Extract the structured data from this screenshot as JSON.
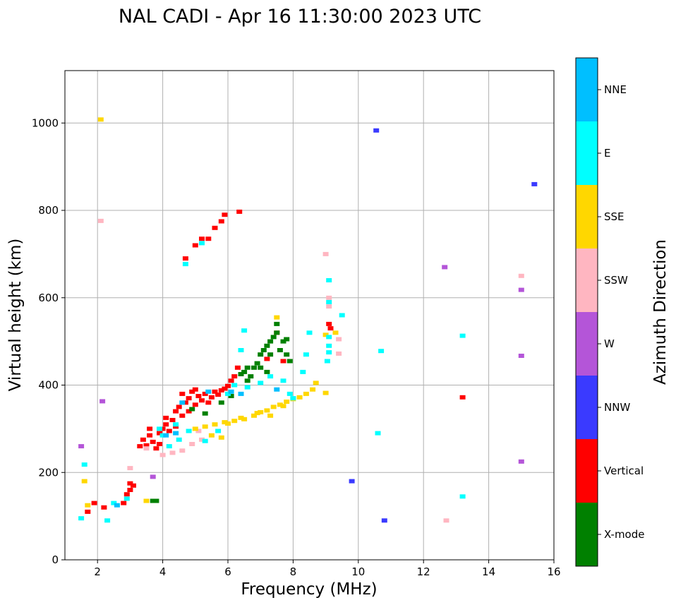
{
  "chart_data": {
    "type": "scatter",
    "title": "NAL CADI - Apr 16 11:30:00 2023 UTC",
    "xlabel": "Frequency (MHz)",
    "ylabel": "Virtual height (km)",
    "xlim": [
      1,
      16
    ],
    "ylim": [
      0,
      1120
    ],
    "xticks": [
      2,
      4,
      6,
      8,
      10,
      12,
      14,
      16
    ],
    "yticks": [
      0,
      200,
      400,
      600,
      800,
      1000
    ],
    "grid": true,
    "colorbar": {
      "label": "Azimuth Direction",
      "categories": [
        "X-mode",
        "Vertical",
        "NNW",
        "W",
        "SSW",
        "SSE",
        "E",
        "NNE"
      ],
      "colors": [
        "#008000",
        "#ff0000",
        "#3a3aff",
        "#b455d8",
        "#ffb6c1",
        "#ffd700",
        "#00ffff",
        "#00bfff"
      ]
    },
    "series": [
      {
        "name": "Vertical",
        "color": "#ff0000",
        "points": [
          [
            3.4,
            275
          ],
          [
            3.5,
            262
          ],
          [
            3.6,
            285
          ],
          [
            3.7,
            270
          ],
          [
            3.8,
            255
          ],
          [
            3.9,
            290
          ],
          [
            4.0,
            300
          ],
          [
            4.1,
            310
          ],
          [
            4.2,
            295
          ],
          [
            4.3,
            320
          ],
          [
            4.4,
            340
          ],
          [
            4.5,
            350
          ],
          [
            4.6,
            330
          ],
          [
            4.7,
            360
          ],
          [
            4.8,
            370
          ],
          [
            4.9,
            385
          ],
          [
            5.0,
            355
          ],
          [
            5.1,
            375
          ],
          [
            5.2,
            365
          ],
          [
            5.3,
            380
          ],
          [
            5.4,
            360
          ],
          [
            5.5,
            372
          ],
          [
            5.6,
            385
          ],
          [
            5.7,
            378
          ],
          [
            5.8,
            388
          ],
          [
            5.9,
            392
          ],
          [
            6.0,
            398
          ],
          [
            6.1,
            410
          ],
          [
            6.2,
            420
          ],
          [
            6.3,
            440
          ],
          [
            3.3,
            260
          ],
          [
            3.6,
            300
          ],
          [
            4.1,
            325
          ],
          [
            4.4,
            305
          ],
          [
            3.9,
            265
          ],
          [
            4.6,
            380
          ],
          [
            5.0,
            390
          ],
          [
            4.8,
            340
          ],
          [
            2.9,
            150
          ],
          [
            3.0,
            160
          ],
          [
            3.0,
            175
          ],
          [
            2.8,
            130
          ],
          [
            1.7,
            110
          ],
          [
            2.2,
            120
          ],
          [
            4.7,
            690
          ],
          [
            5.0,
            720
          ],
          [
            5.2,
            735
          ],
          [
            5.6,
            760
          ],
          [
            5.8,
            775
          ],
          [
            5.9,
            790
          ],
          [
            6.35,
            797
          ],
          [
            5.4,
            735
          ],
          [
            3.1,
            170
          ],
          [
            7.5,
            520
          ],
          [
            7.2,
            460
          ],
          [
            7.7,
            455
          ],
          [
            9.1,
            540
          ],
          [
            9.15,
            530
          ],
          [
            13.2,
            372
          ],
          [
            1.9,
            130
          ]
        ]
      },
      {
        "name": "X-mode",
        "color": "#008000",
        "points": [
          [
            3.7,
            135
          ],
          [
            3.8,
            135
          ],
          [
            6.5,
            430
          ],
          [
            6.6,
            410
          ],
          [
            6.7,
            420
          ],
          [
            6.8,
            440
          ],
          [
            6.9,
            450
          ],
          [
            7.0,
            470
          ],
          [
            7.1,
            480
          ],
          [
            7.2,
            490
          ],
          [
            7.3,
            500
          ],
          [
            7.4,
            510
          ],
          [
            7.5,
            520
          ],
          [
            7.6,
            480
          ],
          [
            7.7,
            500
          ],
          [
            7.8,
            470
          ],
          [
            7.9,
            455
          ],
          [
            7.0,
            440
          ],
          [
            7.2,
            430
          ],
          [
            6.6,
            440
          ],
          [
            6.4,
            425
          ],
          [
            7.5,
            540
          ],
          [
            7.3,
            470
          ],
          [
            7.8,
            505
          ],
          [
            4.9,
            345
          ],
          [
            5.3,
            335
          ],
          [
            6.1,
            375
          ],
          [
            5.8,
            360
          ]
        ]
      },
      {
        "name": "NNW",
        "color": "#3a3aff",
        "points": [
          [
            10.55,
            983
          ],
          [
            15.4,
            860
          ],
          [
            10.8,
            90
          ],
          [
            9.8,
            180
          ]
        ]
      },
      {
        "name": "W",
        "color": "#b455d8",
        "points": [
          [
            12.65,
            670
          ],
          [
            15.0,
            618
          ],
          [
            15.0,
            467
          ],
          [
            15.0,
            225
          ],
          [
            3.7,
            190
          ],
          [
            2.15,
            363
          ],
          [
            1.5,
            260
          ]
        ]
      },
      {
        "name": "SSW",
        "color": "#ffb6c1",
        "points": [
          [
            4.0,
            240
          ],
          [
            4.3,
            245
          ],
          [
            4.6,
            250
          ],
          [
            4.9,
            265
          ],
          [
            5.2,
            275
          ],
          [
            3.5,
            255
          ],
          [
            12.7,
            90
          ],
          [
            15.0,
            650
          ],
          [
            9.0,
            700
          ],
          [
            9.4,
            505
          ],
          [
            9.4,
            472
          ],
          [
            2.1,
            776
          ],
          [
            3.0,
            210
          ],
          [
            9.1,
            600
          ],
          [
            9.1,
            580
          ],
          [
            5.1,
            295
          ]
        ]
      },
      {
        "name": "SSE",
        "color": "#ffd700",
        "points": [
          [
            5.0,
            300
          ],
          [
            5.3,
            305
          ],
          [
            5.6,
            310
          ],
          [
            5.9,
            315
          ],
          [
            6.2,
            318
          ],
          [
            6.5,
            322
          ],
          [
            6.8,
            330
          ],
          [
            7.0,
            338
          ],
          [
            7.2,
            342
          ],
          [
            7.4,
            350
          ],
          [
            7.6,
            355
          ],
          [
            7.8,
            362
          ],
          [
            8.0,
            368
          ],
          [
            8.2,
            372
          ],
          [
            8.4,
            380
          ],
          [
            8.6,
            390
          ],
          [
            8.7,
            405
          ],
          [
            9.0,
            382
          ],
          [
            6.0,
            312
          ],
          [
            6.4,
            325
          ],
          [
            6.9,
            336
          ],
          [
            7.3,
            330
          ],
          [
            7.7,
            352
          ],
          [
            5.5,
            285
          ],
          [
            5.8,
            280
          ],
          [
            1.6,
            180
          ],
          [
            1.7,
            125
          ],
          [
            3.5,
            135
          ],
          [
            2.1,
            1008
          ],
          [
            7.5,
            555
          ],
          [
            9.0,
            515
          ],
          [
            9.3,
            520
          ]
        ]
      },
      {
        "name": "E",
        "color": "#00ffff",
        "points": [
          [
            4.2,
            260
          ],
          [
            4.0,
            285
          ],
          [
            4.5,
            275
          ],
          [
            3.9,
            300
          ],
          [
            4.4,
            310
          ],
          [
            4.8,
            295
          ],
          [
            5.3,
            272
          ],
          [
            5.7,
            295
          ],
          [
            6.0,
            380
          ],
          [
            6.2,
            400
          ],
          [
            6.6,
            395
          ],
          [
            7.0,
            405
          ],
          [
            7.3,
            420
          ],
          [
            7.7,
            410
          ],
          [
            7.9,
            380
          ],
          [
            8.0,
            370
          ],
          [
            8.3,
            430
          ],
          [
            8.5,
            520
          ],
          [
            9.1,
            590
          ],
          [
            9.1,
            510
          ],
          [
            9.1,
            475
          ],
          [
            9.05,
            455
          ],
          [
            9.1,
            640
          ],
          [
            9.1,
            490
          ],
          [
            13.2,
            513
          ],
          [
            10.6,
            290
          ],
          [
            13.2,
            145
          ],
          [
            10.7,
            478
          ],
          [
            9.5,
            560
          ],
          [
            4.7,
            677
          ],
          [
            5.2,
            725
          ],
          [
            6.4,
            480
          ],
          [
            6.5,
            525
          ],
          [
            1.6,
            218
          ],
          [
            1.5,
            95
          ],
          [
            2.3,
            90
          ],
          [
            2.5,
            130
          ],
          [
            2.9,
            140
          ],
          [
            8.4,
            470
          ]
        ]
      },
      {
        "name": "NNE",
        "color": "#00bfff",
        "points": [
          [
            4.1,
            285
          ],
          [
            4.4,
            290
          ],
          [
            4.6,
            360
          ],
          [
            5.4,
            385
          ],
          [
            6.1,
            385
          ],
          [
            2.6,
            125
          ],
          [
            6.4,
            380
          ],
          [
            7.5,
            390
          ]
        ]
      }
    ]
  }
}
